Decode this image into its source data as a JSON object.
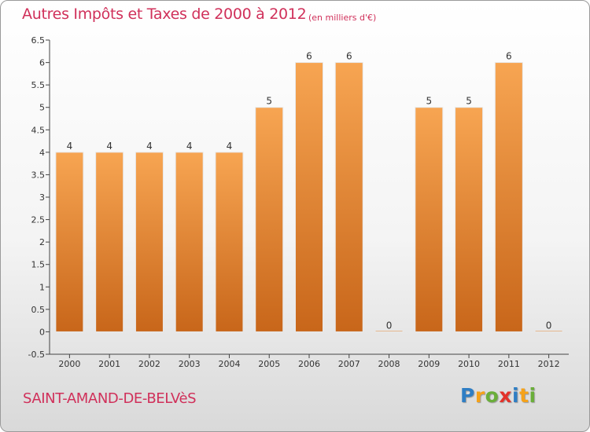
{
  "header": {
    "title": "Autres Impôts et Taxes de 2000 à 2012",
    "subtitle": "(en milliers d'€)"
  },
  "footer": {
    "commune": "SAINT-AMAND-DE-BELVèS",
    "logo_letters": [
      "P",
      "r",
      "o",
      "x",
      "i",
      "t",
      "i"
    ],
    "logo_colors": [
      "#2f7ec4",
      "#f5a21a",
      "#6aae3a",
      "#e3322a",
      "#2f7ec4",
      "#f5a21a",
      "#6aae3a"
    ]
  },
  "chart_data": {
    "type": "bar",
    "categories": [
      "2000",
      "2001",
      "2002",
      "2003",
      "2004",
      "2005",
      "2006",
      "2007",
      "2008",
      "2009",
      "2010",
      "2011",
      "2012"
    ],
    "values": [
      4,
      4,
      4,
      4,
      4,
      5,
      6,
      6,
      0,
      5,
      5,
      6,
      0
    ],
    "data_labels": [
      "4",
      "4",
      "4",
      "4",
      "4",
      "5",
      "6",
      "6",
      "0",
      "5",
      "5",
      "6",
      "0"
    ],
    "y_ticks": [
      "-0.5",
      "0",
      "0.5",
      "1",
      "1.5",
      "2",
      "2.5",
      "3",
      "3.5",
      "4",
      "4.5",
      "5",
      "5.5",
      "6",
      "6.5"
    ],
    "ylim": [
      -0.5,
      6.5
    ],
    "grid": false,
    "bar_color": "#f2913a",
    "bar_color_dark": "#c8661a"
  }
}
